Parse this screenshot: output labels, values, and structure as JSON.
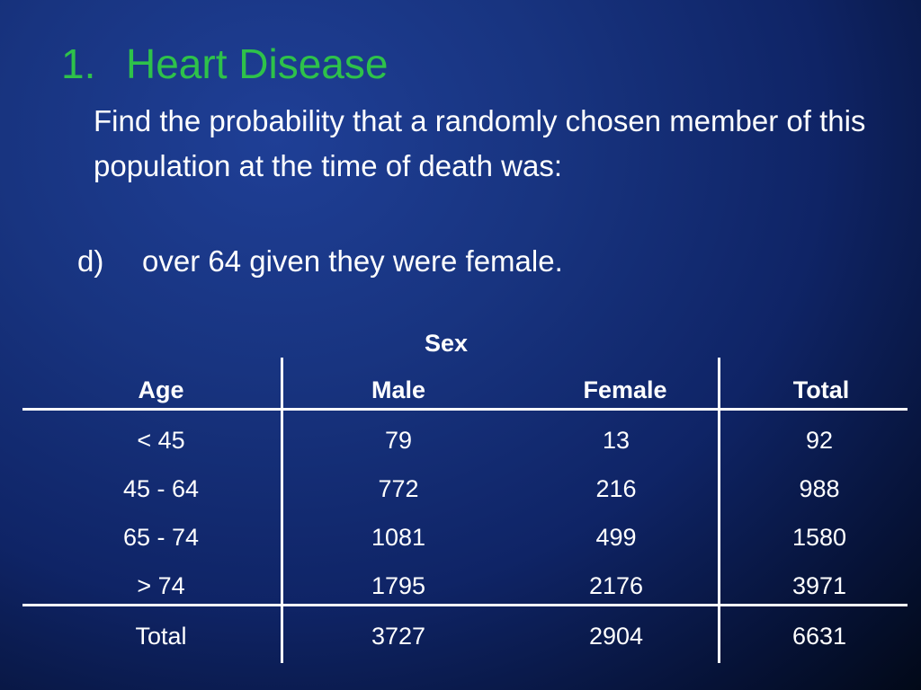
{
  "title": {
    "number": "1.",
    "text": "Heart Disease"
  },
  "question": "Find the probability that a randomly chosen member of this population at the time of death was:",
  "item": {
    "marker": "d)",
    "text": "over 64 given they were female."
  },
  "table": {
    "group_header": "Sex",
    "headers": [
      "Age",
      "Male",
      "Female",
      "Total"
    ],
    "rows": [
      [
        "< 45",
        "79",
        "13",
        "92"
      ],
      [
        "45 - 64",
        "772",
        "216",
        "988"
      ],
      [
        "65 - 74",
        "1081",
        "499",
        "1580"
      ],
      [
        "> 74",
        "1795",
        "2176",
        "3971"
      ]
    ],
    "total_row": [
      "Total",
      "3727",
      "2904",
      "6631"
    ]
  }
}
